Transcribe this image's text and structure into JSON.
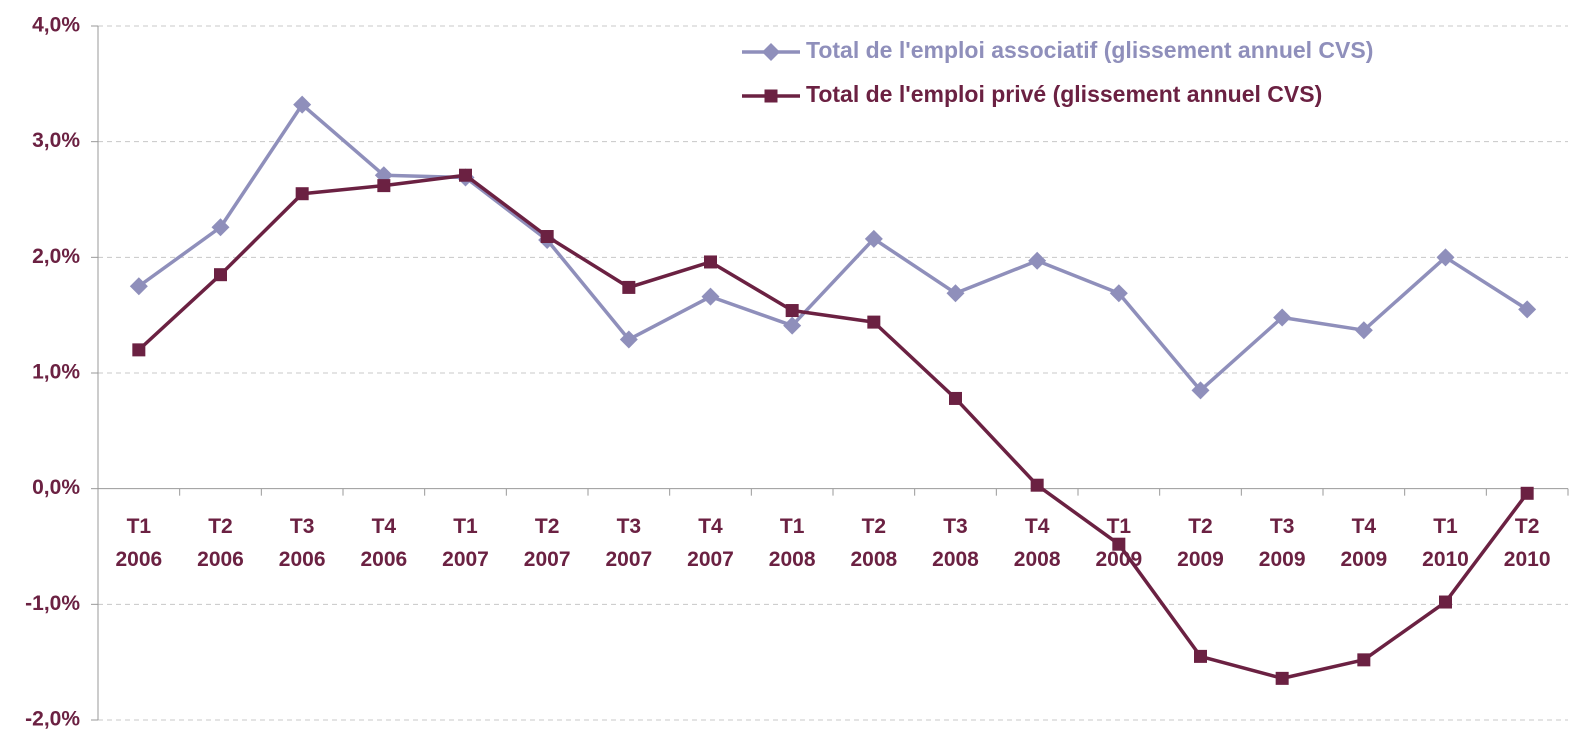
{
  "chart_data": {
    "type": "line",
    "categories": [
      "T1 2006",
      "T2 2006",
      "T3 2006",
      "T4 2006",
      "T1 2007",
      "T2 2007",
      "T3 2007",
      "T4 2007",
      "T1 2008",
      "T2 2008",
      "T3 2008",
      "T4 2008",
      "T1 2009",
      "T2 2009",
      "T3 2009",
      "T4 2009",
      "T1 2010",
      "T2 2010"
    ],
    "series": [
      {
        "name": "Total de l'emploi associatif (glissement annuel CVS)",
        "color": "#8f8fbb",
        "marker": "diamond",
        "values": [
          1.75,
          2.26,
          3.32,
          2.71,
          2.69,
          2.15,
          1.29,
          1.66,
          1.41,
          2.16,
          1.69,
          1.97,
          1.69,
          0.85,
          1.48,
          1.37,
          2.0,
          1.55
        ]
      },
      {
        "name": "Total de l'emploi privé (glissement annuel CVS)",
        "color": "#6b2142",
        "marker": "square",
        "values": [
          1.2,
          1.85,
          2.55,
          2.62,
          2.71,
          2.18,
          1.74,
          1.96,
          1.54,
          1.44,
          0.78,
          0.03,
          -0.48,
          -1.45,
          -1.64,
          -1.48,
          -0.98,
          -0.04
        ]
      }
    ],
    "ylim": [
      -2,
      4
    ],
    "yticks": [
      {
        "value": -2,
        "label": "-2,0%"
      },
      {
        "value": -1,
        "label": "-1,0%"
      },
      {
        "value": 0,
        "label": "0,0%"
      },
      {
        "value": 1,
        "label": "1,0%"
      },
      {
        "value": 2,
        "label": "2,0%"
      },
      {
        "value": 3,
        "label": "3,0%"
      },
      {
        "value": 4,
        "label": "4,0%"
      }
    ],
    "grid": true,
    "legend": "top-right"
  }
}
